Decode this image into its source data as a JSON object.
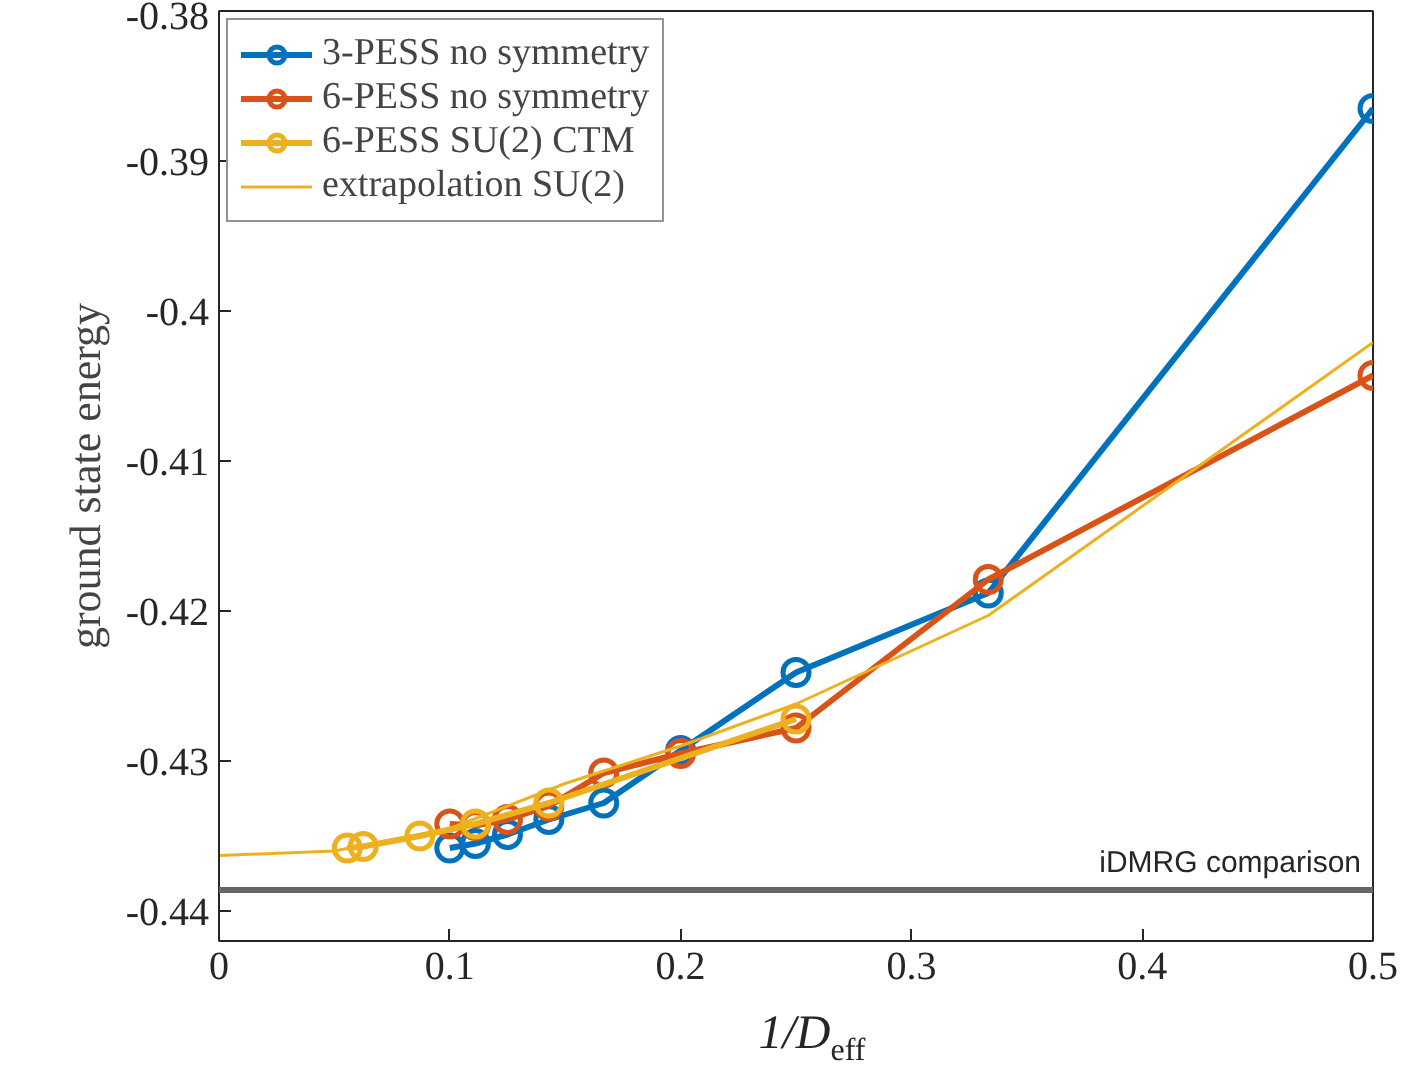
{
  "chart_data": {
    "type": "line",
    "xlabel": "1/D$_{eff}$",
    "ylabel": "ground state energy",
    "xlim": [
      0,
      0.5
    ],
    "ylim": [
      -0.442,
      -0.38
    ],
    "xticks": [
      0,
      0.1,
      0.2,
      0.3,
      0.4,
      0.5
    ],
    "yticks": [
      -0.44,
      -0.43,
      -0.42,
      -0.41,
      -0.4,
      -0.39,
      -0.38
    ],
    "grid": false,
    "legend": "top left",
    "marker": "circle",
    "series": [
      {
        "name": "3-PESS no symmetry",
        "color": "#0072bd",
        "x": [
          0.1,
          0.1111,
          0.125,
          0.1429,
          0.1667,
          0.2,
          0.25,
          0.3333,
          0.5
        ],
        "values": [
          -0.4358,
          -0.4355,
          -0.4349,
          -0.4339,
          -0.4328,
          -0.4293,
          -0.4241,
          -0.4188,
          -0.3865
        ]
      },
      {
        "name": "6-PESS no symmetry",
        "color": "#d95319",
        "x": [
          0.1,
          0.1111,
          0.125,
          0.1429,
          0.1667,
          0.2,
          0.25,
          0.3333,
          0.5
        ],
        "values": [
          -0.4342,
          -0.4343,
          -0.4339,
          -0.433,
          -0.4308,
          -0.4295,
          -0.4278,
          -0.4179,
          -0.4043
        ]
      },
      {
        "name": "6-PESS SU(2) CTM",
        "color": "#edb120",
        "x": [
          0.0556,
          0.0625,
          0.087,
          0.1111,
          0.1429,
          0.25
        ],
        "values": [
          -0.4358,
          -0.4357,
          -0.435,
          -0.4342,
          -0.4328,
          -0.4272
        ]
      },
      {
        "name": "extrapolation SU(2)",
        "color": "#edb120",
        "marker": "none",
        "x": [
          0,
          0.05,
          0.1,
          0.15,
          0.2,
          0.25,
          0.3333,
          0.5
        ],
        "values": [
          -0.4363,
          -0.436,
          -0.4345,
          -0.4315,
          -0.429,
          -0.4262,
          -0.4203,
          -0.4021
        ]
      }
    ],
    "ref_lines": [
      {
        "axis": "y",
        "value": -0.4386,
        "label": "iDMRG comparison",
        "color": "#666666"
      }
    ]
  }
}
